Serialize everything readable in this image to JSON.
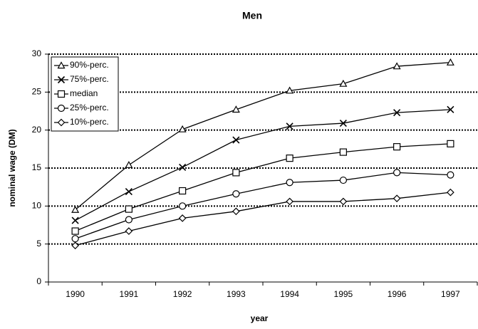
{
  "chart_data": {
    "type": "line",
    "title": "Men",
    "x_label": "year",
    "y_label": "nominal wage (DM)",
    "categories": [
      "1990",
      "1991",
      "1992",
      "1993",
      "1994",
      "1995",
      "1996",
      "1997"
    ],
    "series": [
      {
        "name": "90%-perc.",
        "color": "#000000",
        "marker": "triangle",
        "values": [
          9.5,
          15.4,
          20.1,
          22.7,
          25.2,
          26.1,
          28.4,
          28.9
        ]
      },
      {
        "name": "75%-perc.",
        "color": "#000000",
        "marker": "x",
        "values": [
          8.1,
          11.9,
          15.1,
          18.7,
          20.5,
          20.9,
          22.3,
          22.7
        ]
      },
      {
        "name": "median",
        "color": "#000000",
        "marker": "square",
        "values": [
          6.7,
          9.6,
          12.0,
          14.4,
          16.3,
          17.1,
          17.8,
          18.2
        ]
      },
      {
        "name": "25%-perc.",
        "color": "#000000",
        "marker": "circle",
        "values": [
          5.7,
          8.2,
          10.0,
          11.6,
          13.1,
          13.4,
          14.4,
          14.1
        ]
      },
      {
        "name": "10%-perc.",
        "color": "#000000",
        "marker": "diamond",
        "values": [
          4.8,
          6.7,
          8.4,
          9.3,
          10.6,
          10.6,
          11.0,
          11.8
        ]
      }
    ],
    "ylim": [
      0,
      30
    ],
    "yticks": [
      0,
      5,
      10,
      15,
      20,
      25,
      30
    ],
    "grid": true,
    "legend": "top-left"
  }
}
